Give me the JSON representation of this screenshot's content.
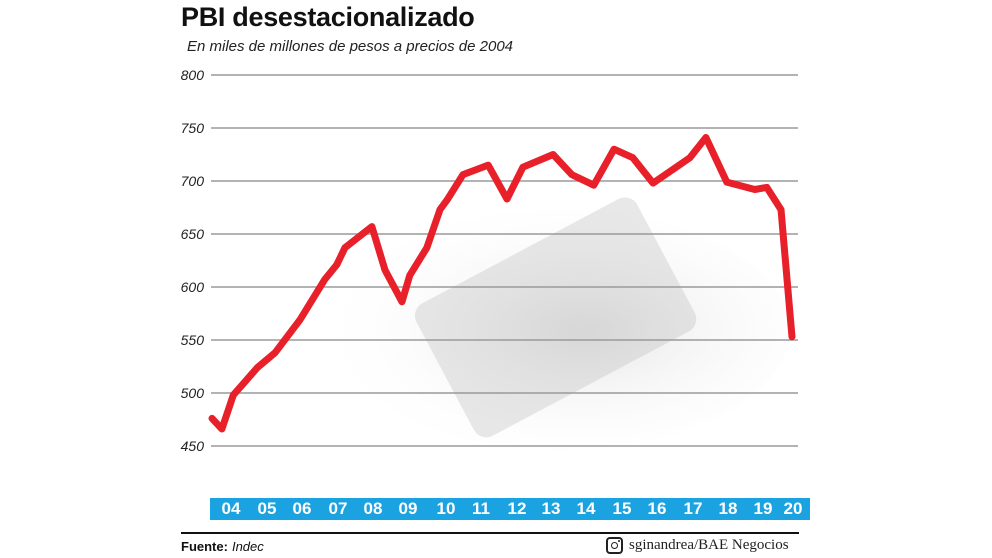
{
  "header": {
    "title": "PBI desestacionalizado",
    "subtitle": "En miles de millones de pesos a precios de 2004"
  },
  "footer": {
    "source_label": "Fuente:",
    "source_value": "Indec",
    "credit": "sginandrea/BAE Negocios",
    "credit_icon": "instagram-icon"
  },
  "colors": {
    "line": "#e8202a",
    "axis_bar": "#1aa3e0",
    "grid": "#9a9a9a"
  },
  "chart_data": {
    "type": "line",
    "title": "PBI desestacionalizado",
    "subtitle": "En miles de millones de pesos a precios de 2004",
    "xlabel": "",
    "ylabel": "",
    "ylim": [
      450,
      800
    ],
    "yticks": [
      800,
      750,
      700,
      650,
      600,
      550,
      500,
      450
    ],
    "grid": true,
    "legend": null,
    "categories": [
      "04",
      "05",
      "06",
      "07",
      "08",
      "09",
      "10",
      "11",
      "12",
      "13",
      "14",
      "15",
      "16",
      "17",
      "18",
      "19",
      "20"
    ],
    "series": [
      {
        "name": "PBI desestacionalizado",
        "x": [
          0.0,
          0.28,
          0.6,
          1.28,
          1.78,
          2.48,
          3.18,
          3.52,
          3.75,
          4.51,
          4.88,
          5.36,
          5.58,
          6.06,
          6.43,
          6.63,
          7.08,
          7.79,
          8.32,
          8.77,
          9.62,
          10.15,
          10.77,
          11.34,
          11.87,
          12.44,
          13.48,
          13.93,
          14.52,
          15.31,
          15.65,
          16.05,
          16.36
        ],
        "values": [
          476,
          466,
          498,
          524,
          538,
          569,
          607,
          621,
          637,
          657,
          616,
          586,
          611,
          637,
          673,
          682,
          706,
          715,
          683,
          713,
          725,
          706,
          696,
          730,
          722,
          698,
          722,
          741,
          699,
          692,
          694,
          673,
          553
        ]
      }
    ],
    "source": "Fuente: Indec"
  }
}
